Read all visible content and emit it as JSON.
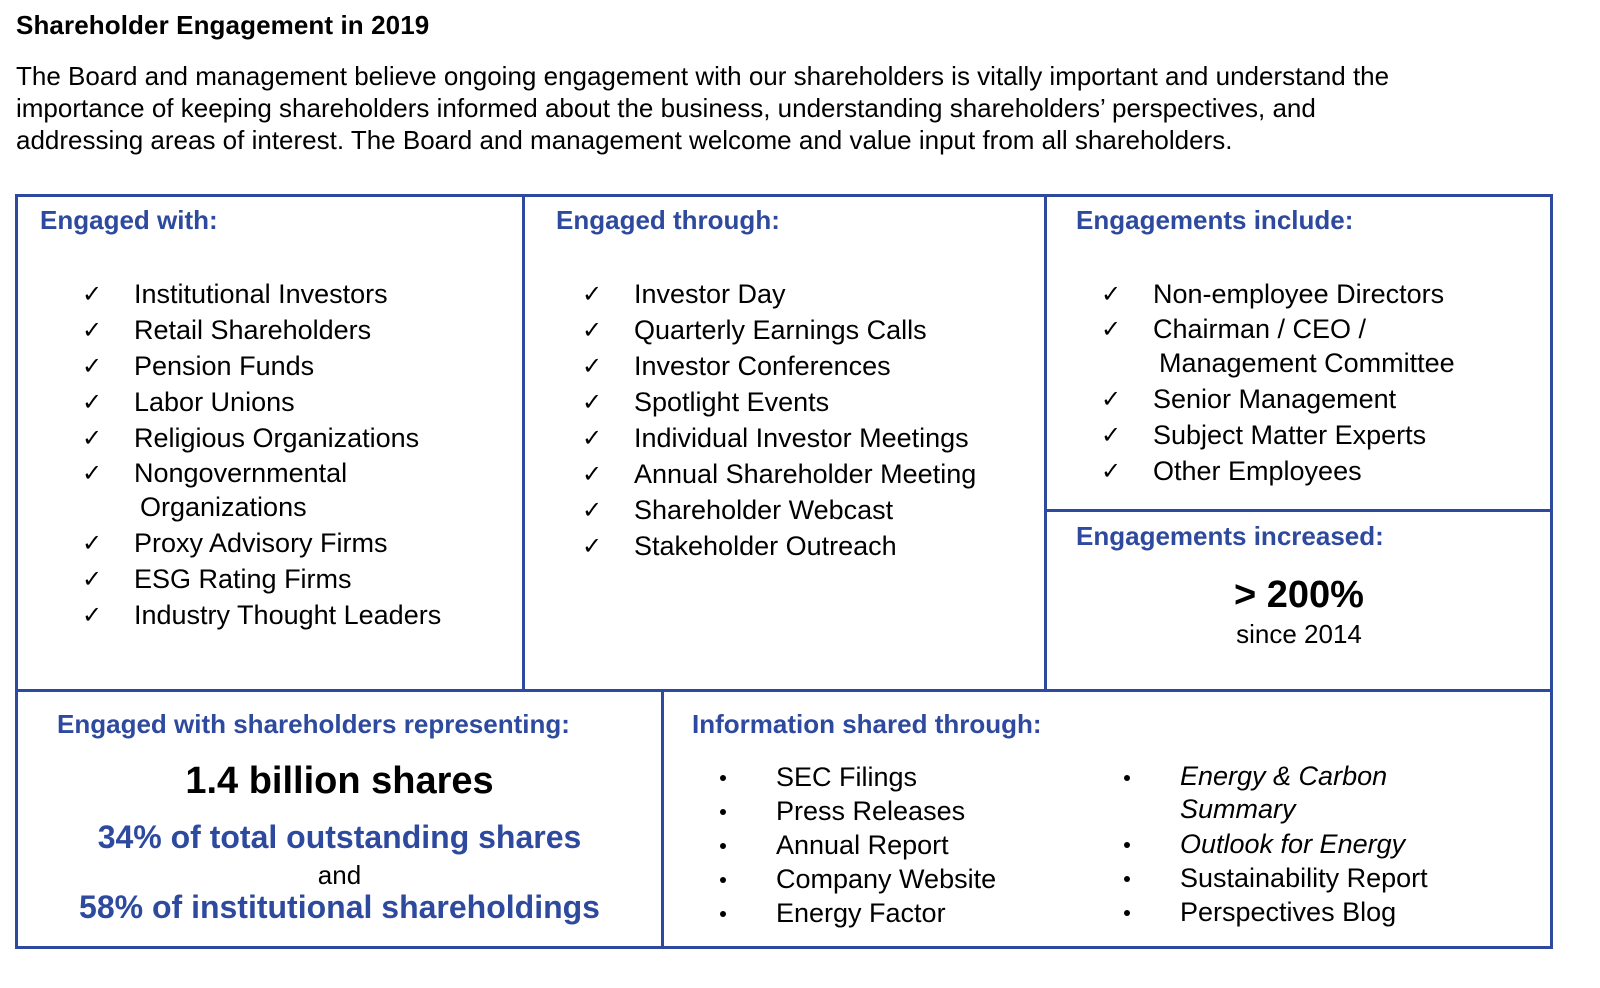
{
  "title": "Shareholder Engagement in 2019",
  "intro": [
    "The Board and management believe ongoing engagement with our shareholders is vitally important and understand the",
    "importance of keeping shareholders informed about the business, understanding shareholders’ perspectives, and",
    "addressing areas of interest. The Board and management welcome and value input from all shareholders."
  ],
  "check_mark": "✓",
  "engaged_with": {
    "heading": "Engaged with:",
    "items": [
      [
        "Institutional Investors"
      ],
      [
        "Retail Shareholders"
      ],
      [
        "Pension Funds"
      ],
      [
        "Labor Unions"
      ],
      [
        "Religious Organizations"
      ],
      [
        "Nongovernmental",
        "Organizations"
      ],
      [
        "Proxy Advisory Firms"
      ],
      [
        "ESG Rating Firms"
      ],
      [
        "Industry Thought Leaders"
      ]
    ]
  },
  "engaged_through": {
    "heading": "Engaged through:",
    "items": [
      "Investor Day",
      "Quarterly Earnings Calls",
      "Investor Conferences",
      "Spotlight Events",
      "Individual Investor Meetings",
      "Annual Shareholder Meeting",
      "Shareholder Webcast",
      "Stakeholder Outreach"
    ]
  },
  "engagements_include": {
    "heading": "Engagements include:",
    "items": [
      [
        "Non-employee Directors"
      ],
      [
        "Chairman / CEO /",
        "Management Committee"
      ],
      [
        "Senior Management"
      ],
      [
        "Subject Matter Experts"
      ],
      [
        "Other Employees"
      ]
    ]
  },
  "engagements_increased": {
    "heading": "Engagements increased:",
    "value": "> 200%",
    "since": "since 2014"
  },
  "representing": {
    "heading": "Engaged with shareholders representing:",
    "shares": "1.4 billion shares",
    "pct_total": "34% of total outstanding shares",
    "and": "and",
    "pct_inst": "58% of institutional shareholdings"
  },
  "info_shared": {
    "heading": "Information shared through:",
    "col1": [
      "SEC Filings",
      "Press Releases",
      "Annual Report",
      "Company Website",
      "Energy Factor"
    ],
    "col2_italic_two_line": [
      "Energy & Carbon",
      "Summary"
    ],
    "col2_italic": "Outlook for Energy",
    "col2": [
      "Sustainability Report",
      "Perspectives Blog"
    ]
  },
  "colors": {
    "accent": "#2e4a9e",
    "text": "#000000"
  }
}
